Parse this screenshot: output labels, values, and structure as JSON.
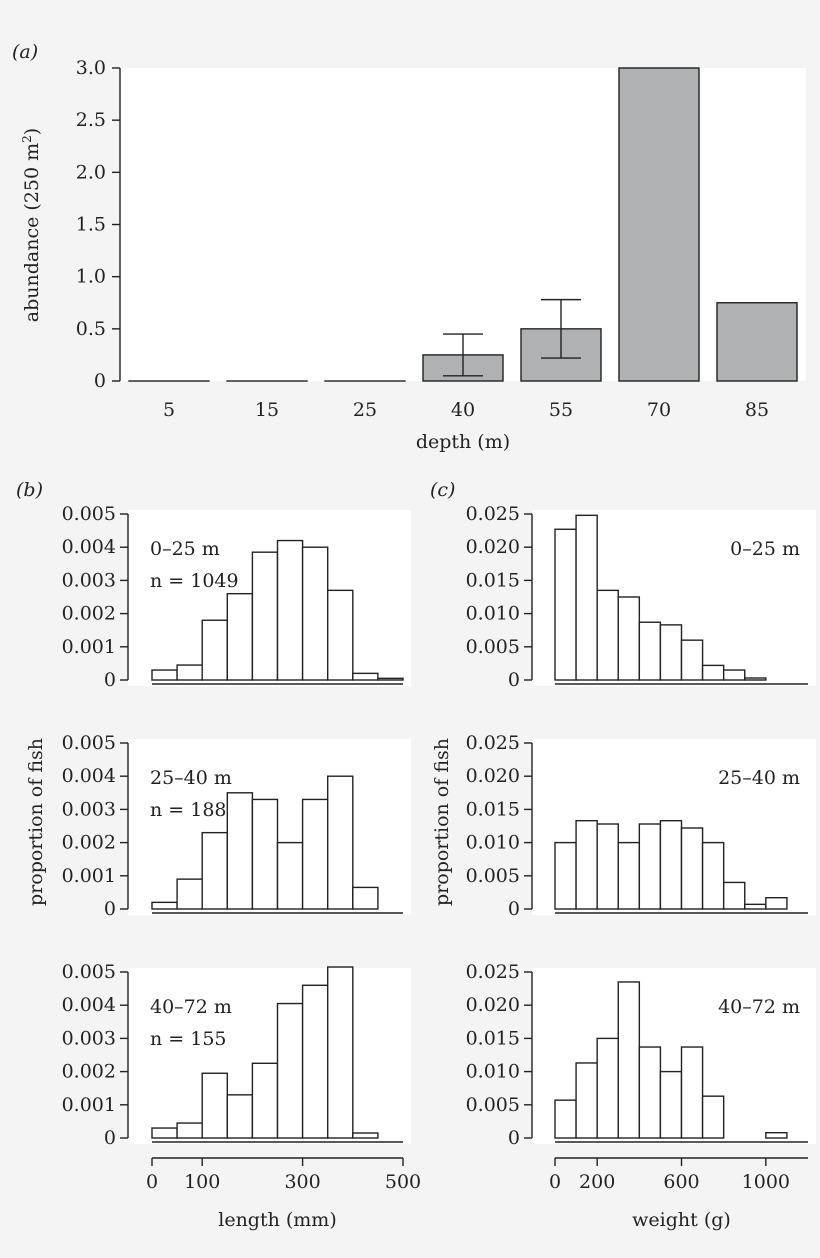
{
  "chart_data": [
    {
      "id": "a",
      "panel_label": "(a)",
      "type": "bar",
      "categories": [
        "5",
        "15",
        "25",
        "40",
        "55",
        "70",
        "85"
      ],
      "values": [
        0,
        0,
        0,
        0.25,
        0.5,
        3.0,
        0.75
      ],
      "error_upper": [
        null,
        null,
        null,
        0.45,
        0.78,
        null,
        null
      ],
      "error_lower": [
        null,
        null,
        null,
        0.05,
        0.22,
        null,
        null
      ],
      "xlabel": "depth (m)",
      "ylabel_main": "abundance (250 m",
      "ylabel_sup": "2",
      "ylabel_tail": ")",
      "ylim": [
        0,
        3.0
      ],
      "yticks": [
        0,
        0.5,
        1.0,
        1.5,
        2.0,
        2.5,
        3.0
      ],
      "ytick_labels": [
        "0",
        "0.5",
        "1.0",
        "1.5",
        "2.0",
        "2.5",
        "3.0"
      ]
    },
    {
      "id": "b",
      "panel_label": "(b)",
      "type": "bar",
      "subtype": "histogram",
      "xlabel": "length (mm)",
      "ylabel": "proportion of fish",
      "xlim": [
        0,
        500
      ],
      "xticks": [
        0,
        100,
        300,
        500
      ],
      "ylim": [
        0,
        0.005
      ],
      "yticks": [
        0,
        0.001,
        0.002,
        0.003,
        0.004,
        0.005
      ],
      "ytick_labels": [
        "0",
        "0.001",
        "0.002",
        "0.003",
        "0.004",
        "0.005"
      ],
      "bin_edges": [
        0,
        50,
        100,
        150,
        200,
        250,
        300,
        350,
        400,
        450,
        500
      ],
      "series": [
        {
          "name": "0–25 m",
          "n_label": "n = 1049",
          "values": [
            0.0003,
            0.00045,
            0.0018,
            0.0026,
            0.00385,
            0.0042,
            0.004,
            0.0027,
            0.0002,
            5e-05
          ]
        },
        {
          "name": "25–40 m",
          "n_label": "n = 188",
          "values": [
            0.0002,
            0.0009,
            0.0023,
            0.0035,
            0.0033,
            0.002,
            0.0033,
            0.004,
            0.00065,
            0
          ]
        },
        {
          "name": "40–72 m",
          "n_label": "n = 155",
          "values": [
            0.0003,
            0.00045,
            0.00195,
            0.0013,
            0.00225,
            0.00405,
            0.0046,
            0.00515,
            0.00015,
            0
          ]
        }
      ]
    },
    {
      "id": "c",
      "panel_label": "(c)",
      "type": "bar",
      "subtype": "histogram",
      "xlabel": "weight (g)",
      "ylabel": "proportion of fish",
      "xlim": [
        0,
        1200
      ],
      "xticks": [
        0,
        200,
        600,
        1000
      ],
      "ylim": [
        0,
        0.025
      ],
      "yticks": [
        0,
        0.005,
        0.01,
        0.015,
        0.02,
        0.025
      ],
      "ytick_labels": [
        "0",
        "0.005",
        "0.010",
        "0.015",
        "0.020",
        "0.025"
      ],
      "bin_edges": [
        0,
        100,
        200,
        300,
        400,
        500,
        600,
        700,
        800,
        900,
        1000,
        1100
      ],
      "series": [
        {
          "name": "0–25 m",
          "values": [
            0.0227,
            0.0248,
            0.0135,
            0.0125,
            0.0087,
            0.0083,
            0.006,
            0.0022,
            0.0015,
            0.0003,
            0
          ]
        },
        {
          "name": "25–40 m",
          "values": [
            0.01,
            0.0133,
            0.0128,
            0.01,
            0.0128,
            0.0133,
            0.0122,
            0.01,
            0.004,
            0.0007,
            0.0017
          ]
        },
        {
          "name": "40–72 m",
          "values": [
            0.0057,
            0.0113,
            0.015,
            0.0235,
            0.0137,
            0.01,
            0.0137,
            0.0063,
            0,
            0,
            0.0008
          ]
        }
      ]
    }
  ]
}
